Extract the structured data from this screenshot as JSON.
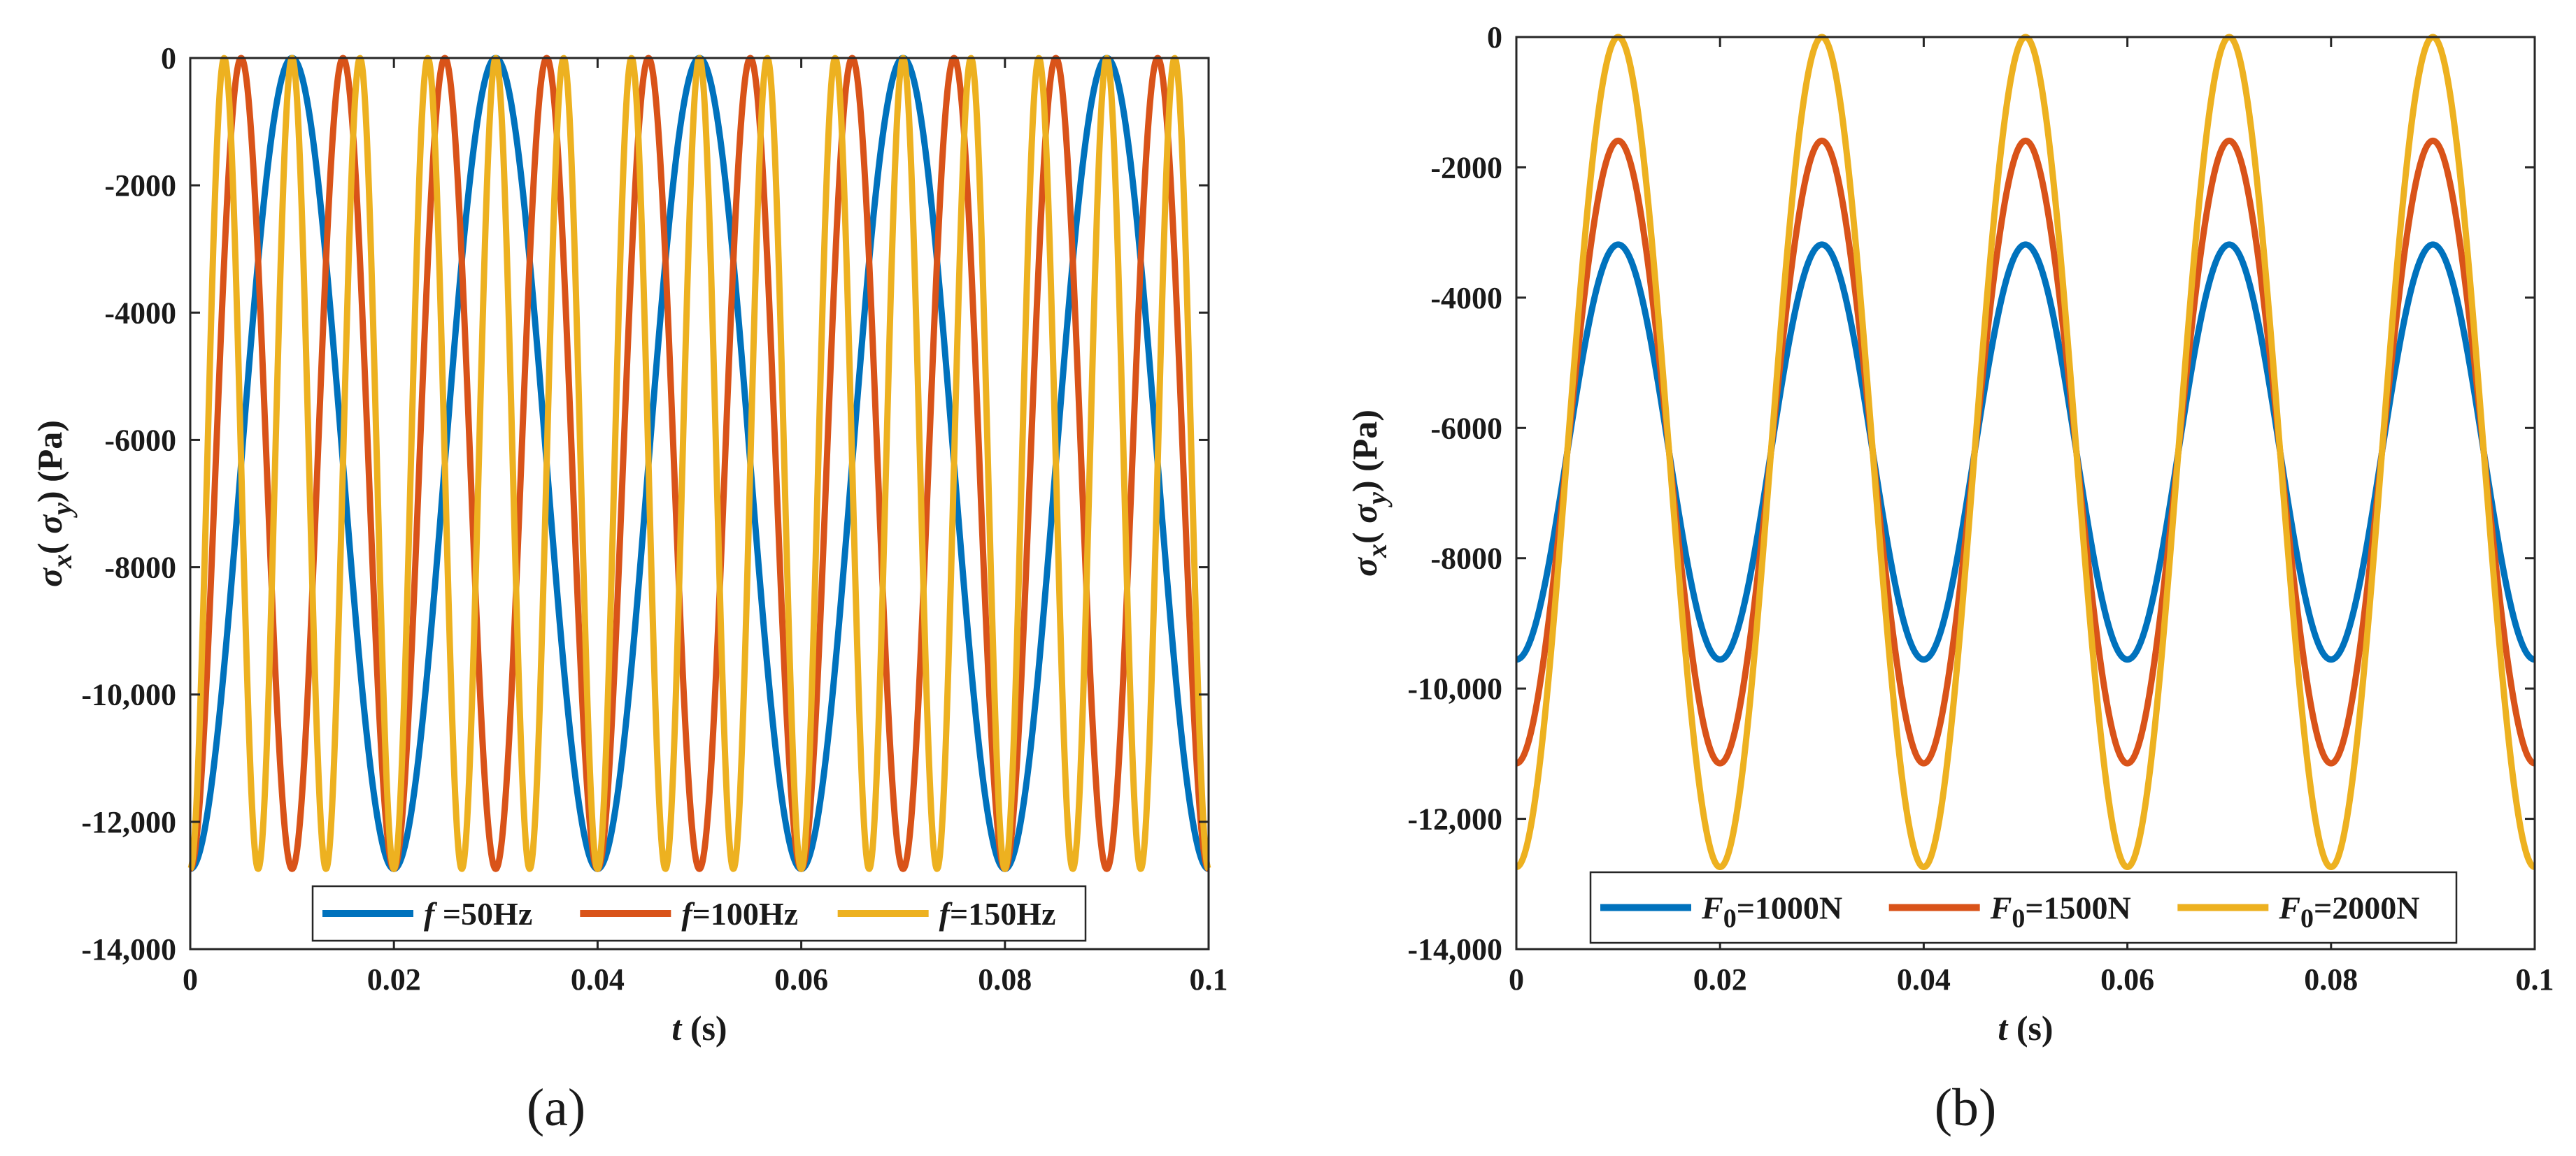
{
  "chart_data": [
    {
      "type": "line",
      "panel_label": "(a)",
      "xlabel": {
        "var": "t",
        "unit": "(s)"
      },
      "ylabel": "σx( σy) (Pa)",
      "xlim": [
        0,
        0.1
      ],
      "ylim": [
        -14000,
        0
      ],
      "xticks": [
        0,
        0.02,
        0.04,
        0.06,
        0.08,
        0.1
      ],
      "xtick_labels": [
        "0",
        "0.02",
        "0.04",
        "0.06",
        "0.08",
        "0.1"
      ],
      "yticks": [
        0,
        -2000,
        -4000,
        -6000,
        -8000,
        -10000,
        -12000,
        -14000
      ],
      "ytick_labels": [
        "0",
        "-2000",
        "-4000",
        "-6000",
        "-8000",
        "-10,000",
        "-12,000",
        "-14,000"
      ],
      "legend_position": "bottom-center",
      "series": [
        {
          "name": "f =50Hz",
          "legend": {
            "var": "f",
            "sub": "",
            "text": " =50Hz"
          },
          "color": "#0072BD",
          "frequency_hz": 50,
          "mean": -6370,
          "amplitude": 6370
        },
        {
          "name": "f=100Hz",
          "legend": {
            "var": "f",
            "sub": "",
            "text": "=100Hz"
          },
          "color": "#D95319",
          "frequency_hz": 100,
          "mean": -6370,
          "amplitude": 6370
        },
        {
          "name": "f=150Hz",
          "legend": {
            "var": "f",
            "sub": "",
            "text": "=150Hz"
          },
          "color": "#EDB120",
          "frequency_hz": 150,
          "mean": -6370,
          "amplitude": 6370
        }
      ]
    },
    {
      "type": "line",
      "panel_label": "(b)",
      "xlabel": {
        "var": "t",
        "unit": "(s)"
      },
      "ylabel": "σx( σy) (Pa)",
      "xlim": [
        0,
        0.1
      ],
      "ylim": [
        -14000,
        0
      ],
      "xticks": [
        0,
        0.02,
        0.04,
        0.06,
        0.08,
        0.1
      ],
      "xtick_labels": [
        "0",
        "0.02",
        "0.04",
        "0.06",
        "0.08",
        "0.1"
      ],
      "yticks": [
        0,
        -2000,
        -4000,
        -6000,
        -8000,
        -10000,
        -12000,
        -14000
      ],
      "ytick_labels": [
        "0",
        "-2000",
        "-4000",
        "-6000",
        "-8000",
        "-10,000",
        "-12,000",
        "-14,000"
      ],
      "legend_position": "bottom-center",
      "series": [
        {
          "name": "F0=1000N",
          "legend": {
            "var": "F",
            "sub": "0",
            "text": "=1000N"
          },
          "color": "#0072BD",
          "frequency_hz": 50,
          "mean": -6370,
          "amplitude": 3185
        },
        {
          "name": "F0=1500N",
          "legend": {
            "var": "F",
            "sub": "0",
            "text": "=1500N"
          },
          "color": "#D95319",
          "frequency_hz": 50,
          "mean": -6370,
          "amplitude": 4778
        },
        {
          "name": "F0=2000N",
          "legend": {
            "var": "F",
            "sub": "0",
            "text": "=2000N"
          },
          "color": "#EDB120",
          "frequency_hz": 50,
          "mean": -6370,
          "amplitude": 6370
        }
      ]
    }
  ]
}
